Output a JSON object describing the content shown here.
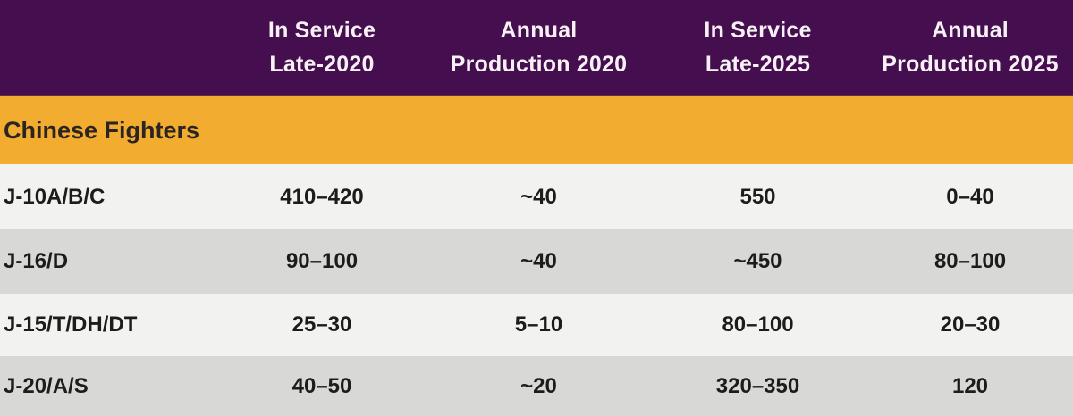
{
  "chart_data": {
    "type": "table",
    "section_title": "Chinese Fighters",
    "column_headers": [
      {
        "line1": "In Service",
        "line2": "Late-2020"
      },
      {
        "line1": "Annual",
        "line2": "Production 2020"
      },
      {
        "line1": "In Service",
        "line2": "Late-2025"
      },
      {
        "line1": "Annual",
        "line2": "Production 2025"
      }
    ],
    "rows": [
      {
        "label": "J-10A/B/C",
        "values": [
          "410–420",
          "~40",
          "550",
          "0–40"
        ]
      },
      {
        "label": "J-16/D",
        "values": [
          "90–100",
          "~40",
          "~450",
          "80–100"
        ]
      },
      {
        "label": "J-15/T/DH/DT",
        "values": [
          "25–30",
          "5–10",
          "80–100",
          "20–30"
        ]
      },
      {
        "label": "J-20/A/S",
        "values": [
          "40–50",
          "~20",
          "320–350",
          "120"
        ]
      }
    ]
  },
  "colors": {
    "header_bg": "#450e4f",
    "header_text": "#f7f1f6",
    "section_bg": "#f2ad31",
    "section_text": "#2b2420",
    "row_light_bg": "#f2f2f0",
    "row_dark_bg": "#d8d8d6",
    "data_text": "#1c1c1c"
  }
}
